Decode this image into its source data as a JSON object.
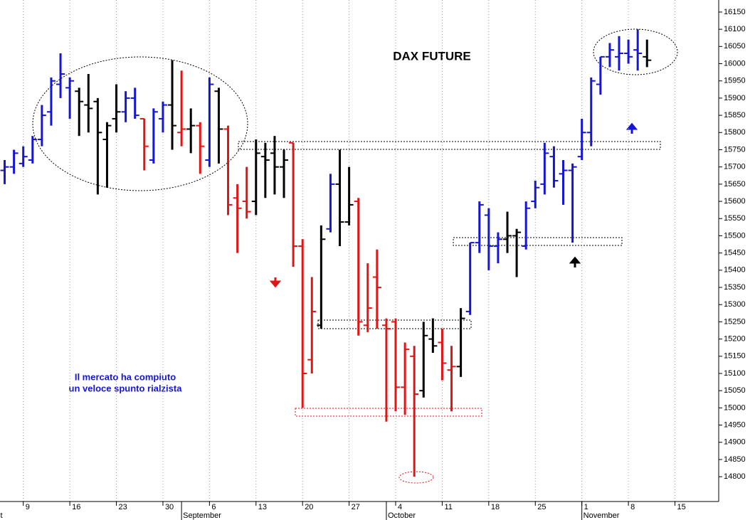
{
  "chart_data": {
    "type": "ohlc",
    "title": "DAX FUTURE",
    "annotation": [
      "Il mercato ha compiuto",
      "un veloce spunto rialzista"
    ],
    "x": [
      0,
      1,
      2,
      3,
      4,
      5,
      6,
      7,
      8,
      9,
      10,
      11,
      12,
      13,
      14,
      15,
      16,
      17,
      18,
      19,
      20,
      21,
      22,
      23,
      24,
      25,
      26,
      27,
      28,
      29,
      30,
      31,
      32,
      33,
      34,
      35,
      36,
      37,
      38,
      39,
      40,
      41,
      42,
      43,
      44,
      45,
      46,
      47,
      48,
      49,
      50,
      51,
      52,
      53,
      54,
      55,
      56,
      57,
      58,
      59,
      60,
      61,
      62,
      63,
      64,
      65,
      66,
      67,
      68,
      69
    ],
    "open": [
      15690,
      15700,
      15710,
      15720,
      15780,
      15860,
      15940,
      15930,
      15920,
      15880,
      15890,
      15780,
      15840,
      15860,
      15900,
      15840,
      15720,
      15840,
      15880,
      15800,
      15810,
      15820,
      15720,
      15920,
      15810,
      15610,
      15600,
      15600,
      15730,
      15740,
      15700,
      15770,
      15470,
      15140,
      15240,
      15520,
      15650,
      15540,
      15600,
      15240,
      15380,
      15240,
      15250,
      15060,
      15150,
      15050,
      15200,
      15190,
      15110,
      15120,
      15280,
      15480,
      15560,
      15470,
      15490,
      15500,
      15470,
      15600,
      15650,
      15730,
      15680,
      15690,
      15730,
      15800,
      15940,
      16020,
      16020,
      16030,
      16040,
      16020
    ],
    "high": [
      15720,
      15750,
      15760,
      15790,
      15880,
      15960,
      16030,
      15960,
      15930,
      15970,
      15900,
      15830,
      15940,
      15920,
      15930,
      15840,
      15870,
      15890,
      16010,
      15980,
      15870,
      15830,
      15960,
      15930,
      15820,
      15650,
      15700,
      15780,
      15770,
      15790,
      15750,
      15770,
      15490,
      15380,
      15530,
      15680,
      15750,
      15700,
      15610,
      15420,
      15460,
      15260,
      15260,
      15190,
      15180,
      15250,
      15260,
      15230,
      15180,
      15290,
      15480,
      15600,
      15580,
      15510,
      15570,
      15520,
      15600,
      15660,
      15770,
      15760,
      15720,
      15710,
      15840,
      15960,
      16020,
      16060,
      16080,
      16070,
      16100,
      16070
    ],
    "low": [
      15650,
      15680,
      15700,
      15710,
      15760,
      15820,
      15900,
      15840,
      15790,
      15800,
      15620,
      15640,
      15800,
      15830,
      15840,
      15690,
      15710,
      15800,
      15750,
      15760,
      15740,
      15680,
      15700,
      15710,
      15560,
      15450,
      15550,
      15560,
      15610,
      15620,
      15610,
      15410,
      15000,
      15100,
      15230,
      15510,
      15470,
      15530,
      15210,
      15220,
      15230,
      14960,
      14990,
      14980,
      14800,
      15030,
      15160,
      15080,
      14990,
      15090,
      15270,
      15450,
      15400,
      15420,
      15450,
      15380,
      15460,
      15580,
      15620,
      15640,
      15590,
      15480,
      15720,
      15760,
      15910,
      15990,
      15980,
      16000,
      15980,
      15990
    ],
    "close": [
      15700,
      15740,
      15730,
      15780,
      15850,
      15950,
      15970,
      15950,
      15890,
      15870,
      15800,
      15820,
      15860,
      15900,
      15850,
      15760,
      15860,
      15880,
      15820,
      15810,
      15820,
      15760,
      15940,
      15810,
      15590,
      15580,
      15570,
      15740,
      15720,
      15700,
      15720,
      15470,
      15100,
      15280,
      15490,
      15650,
      15540,
      15590,
      15250,
      15290,
      15350,
      15230,
      15060,
      15170,
      15040,
      15210,
      15180,
      15130,
      15120,
      15260,
      15480,
      15590,
      15470,
      15490,
      15500,
      15510,
      15580,
      15640,
      15740,
      15660,
      15690,
      15700,
      15800,
      15950,
      16020,
      16040,
      16030,
      16020,
      16030,
      16010
    ],
    "colors": [
      "#1515d5",
      "#1515d5",
      "#1515d5",
      "#1515d5",
      "#1515d5",
      "#1515d5",
      "#1515d5",
      "#1515d5",
      "#000000",
      "#000000",
      "#000000",
      "#000000",
      "#000000",
      "#1515d5",
      "#1515d5",
      "#e01515",
      "#1515d5",
      "#1515d5",
      "#000000",
      "#e01515",
      "#000000",
      "#e01515",
      "#1515d5",
      "#000000",
      "#e01515",
      "#e01515",
      "#e01515",
      "#000000",
      "#000000",
      "#000000",
      "#000000",
      "#e01515",
      "#e01515",
      "#e01515",
      "#000000",
      "#1515d5",
      "#000000",
      "#000000",
      "#e01515",
      "#e01515",
      "#e01515",
      "#e01515",
      "#e01515",
      "#e01515",
      "#e01515",
      "#000000",
      "#000000",
      "#e01515",
      "#e01515",
      "#000000",
      "#1515d5",
      "#1515d5",
      "#1515d5",
      "#1515d5",
      "#000000",
      "#000000",
      "#1515d5",
      "#1515d5",
      "#1515d5",
      "#1515d5",
      "#1515d5",
      "#1515d5",
      "#1515d5",
      "#1515d5",
      "#1515d5",
      "#1515d5",
      "#1515d5",
      "#1515d5",
      "#1515d5",
      "#000000"
    ],
    "xlim": [
      -0.5,
      76.7
    ],
    "xticks": [
      {
        "value": 2,
        "label": "9"
      },
      {
        "value": 7,
        "label": "16"
      },
      {
        "value": 12,
        "label": "23"
      },
      {
        "value": 17,
        "label": "30"
      },
      {
        "value": 22,
        "label": "6"
      },
      {
        "value": 27,
        "label": "13"
      },
      {
        "value": 32,
        "label": "20"
      },
      {
        "value": 37,
        "label": "27"
      },
      {
        "value": 42,
        "label": "4"
      },
      {
        "value": 47,
        "label": "11"
      },
      {
        "value": 52,
        "label": "18"
      },
      {
        "value": 57,
        "label": "25"
      },
      {
        "value": 62,
        "label": "1"
      },
      {
        "value": 67,
        "label": "8"
      },
      {
        "value": 72,
        "label": "15"
      }
    ],
    "months": [
      {
        "value": -3,
        "label": "August"
      },
      {
        "value": 19,
        "label": "September"
      },
      {
        "value": 41,
        "label": "October"
      },
      {
        "value": 62,
        "label": "November"
      }
    ],
    "ylim": [
      14728,
      16185
    ],
    "yticks": [
      14800,
      14850,
      14900,
      14950,
      15000,
      15050,
      15100,
      15150,
      15200,
      15250,
      15300,
      15350,
      15400,
      15450,
      15500,
      15550,
      15600,
      15650,
      15700,
      15750,
      15800,
      15850,
      15900,
      15950,
      16000,
      16050,
      16100,
      16150
    ],
    "grid": true
  }
}
